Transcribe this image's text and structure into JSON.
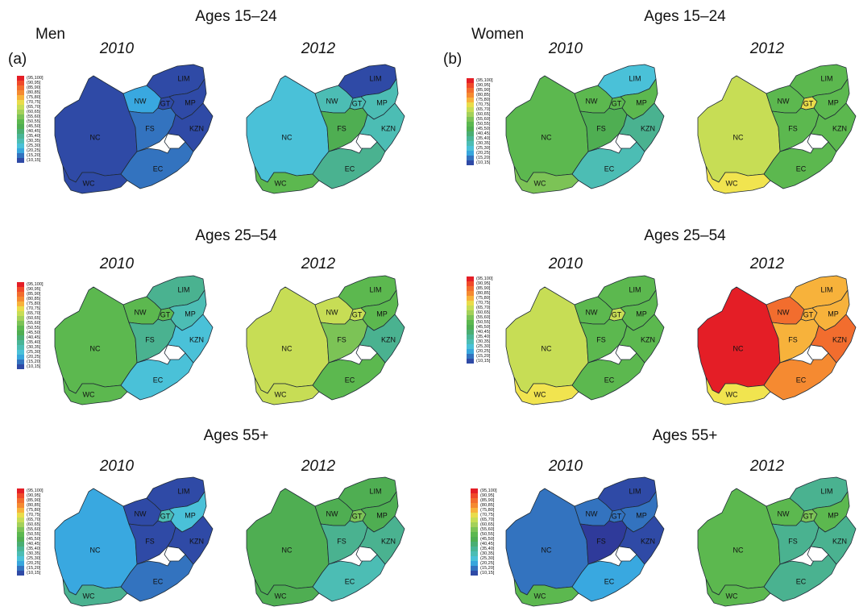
{
  "panels": [
    {
      "tag": "(a)",
      "sex": "Men"
    },
    {
      "tag": "(b)",
      "sex": "Women"
    }
  ],
  "age_groups": [
    "Ages 15–24",
    "Ages 25–54",
    "Ages 55+"
  ],
  "years": [
    "2010",
    "2012"
  ],
  "legend": {
    "bins": [
      "(95,100]",
      "(90,95]",
      "(85,90]",
      "(80,85]",
      "(75,80]",
      "(70,75]",
      "(65,70]",
      "(60,65]",
      "(55,60]",
      "(50,55]",
      "(45,50]",
      "(40,45]",
      "(35,40]",
      "(30,35]",
      "(25,30]",
      "(20,25]",
      "(15,20]",
      "(10,15]"
    ],
    "colors": [
      "#e41e26",
      "#f04a2a",
      "#f26d2e",
      "#f58a31",
      "#f7b23b",
      "#e9dc4a",
      "#c7dd55",
      "#a4d15a",
      "#7cc356",
      "#5cb84f",
      "#4fae52",
      "#4aae73",
      "#49b596",
      "#4cbdb4",
      "#4ac1d8",
      "#38a6dc",
      "#3373bf",
      "#2f4aa6"
    ]
  },
  "region_labels": [
    "LIM",
    "NW",
    "GT",
    "MP",
    "NC",
    "FS",
    "KZN",
    "WC",
    "EC"
  ],
  "maps": [
    {
      "sex": "Men",
      "age": "Ages 15–24",
      "year": "2010",
      "colors": {
        "LIM": "#2f4aa6",
        "NW": "#39a8e0",
        "GT": "#2f4aa6",
        "MP": "#2f4aa6",
        "NC": "#2f4aa6",
        "FS": "#3373bf",
        "KZN": "#2f4aa6",
        "WC": "#2f4aa6",
        "EC": "#3373bf"
      }
    },
    {
      "sex": "Men",
      "age": "Ages 15–24",
      "year": "2012",
      "colors": {
        "LIM": "#2f4aa6",
        "NW": "#4cbdb4",
        "GT": "#4cbdb4",
        "MP": "#4cbdb4",
        "NC": "#4ac1d8",
        "FS": "#4fae52",
        "KZN": "#4cbdb4",
        "WC": "#5cb84f",
        "EC": "#4ab290"
      }
    },
    {
      "sex": "Women",
      "age": "Ages 15–24",
      "year": "2010",
      "colors": {
        "LIM": "#4ac1d8",
        "NW": "#5cb84f",
        "GT": "#5cb84f",
        "MP": "#5cb84f",
        "NC": "#5cb84f",
        "FS": "#4fae52",
        "KZN": "#4ab290",
        "WC": "#7cc356",
        "EC": "#4cbdb4"
      }
    },
    {
      "sex": "Women",
      "age": "Ages 15–24",
      "year": "2012",
      "colors": {
        "LIM": "#5cb84f",
        "NW": "#5cb84f",
        "GT": "#e9dc4a",
        "MP": "#5cb84f",
        "NC": "#c7dd55",
        "FS": "#5cb84f",
        "KZN": "#5cb84f",
        "WC": "#f1e44f",
        "EC": "#5cb84f"
      }
    },
    {
      "sex": "Men",
      "age": "Ages 25–54",
      "year": "2010",
      "colors": {
        "LIM": "#4ab290",
        "NW": "#5cb84f",
        "GT": "#5cb84f",
        "MP": "#4cbdb4",
        "NC": "#5cb84f",
        "FS": "#4ab290",
        "KZN": "#4ac1d8",
        "WC": "#5cb84f",
        "EC": "#4ac1d8"
      }
    },
    {
      "sex": "Men",
      "age": "Ages 25–54",
      "year": "2012",
      "colors": {
        "LIM": "#5cb84f",
        "NW": "#c7dd55",
        "GT": "#c7dd55",
        "MP": "#5cb84f",
        "NC": "#c7dd55",
        "FS": "#7cc356",
        "KZN": "#4ab290",
        "WC": "#c7dd55",
        "EC": "#5cb84f"
      }
    },
    {
      "sex": "Women",
      "age": "Ages 25–54",
      "year": "2010",
      "colors": {
        "LIM": "#5cb84f",
        "NW": "#5cb84f",
        "GT": "#c7dd55",
        "MP": "#5cb84f",
        "NC": "#c7dd55",
        "FS": "#5cb84f",
        "KZN": "#5cb84f",
        "WC": "#f1e44f",
        "EC": "#5cb84f"
      }
    },
    {
      "sex": "Women",
      "age": "Ages 25–54",
      "year": "2012",
      "colors": {
        "LIM": "#f7b23b",
        "NW": "#f26d2e",
        "GT": "#f7b23b",
        "MP": "#f7b23b",
        "NC": "#e41e26",
        "FS": "#f7b23b",
        "KZN": "#f26d2e",
        "WC": "#f1e44f",
        "EC": "#f58a31"
      }
    },
    {
      "sex": "Men",
      "age": "Ages 55+",
      "year": "2010",
      "colors": {
        "LIM": "#2f4aa6",
        "NW": "#2f4aa6",
        "GT": "#4cbdb4",
        "MP": "#4ac1d8",
        "NC": "#39a8e0",
        "FS": "#2f4aa6",
        "KZN": "#2f4aa6",
        "WC": "#4ab290",
        "EC": "#3373bf"
      }
    },
    {
      "sex": "Men",
      "age": "Ages 55+",
      "year": "2012",
      "colors": {
        "LIM": "#4fae52",
        "NW": "#4fae52",
        "GT": "#7cc356",
        "MP": "#4fae52",
        "NC": "#4fae52",
        "FS": "#4ab290",
        "KZN": "#4ab290",
        "WC": "#4fae52",
        "EC": "#4cbdb4"
      }
    },
    {
      "sex": "Women",
      "age": "Ages 55+",
      "year": "2010",
      "colors": {
        "LIM": "#2f4aa6",
        "NW": "#3373bf",
        "GT": "#3373bf",
        "MP": "#3373bf",
        "NC": "#3373bf",
        "FS": "#2f3a9a",
        "KZN": "#2f4aa6",
        "WC": "#5cb84f",
        "EC": "#39a8e0"
      }
    },
    {
      "sex": "Women",
      "age": "Ages 55+",
      "year": "2012",
      "colors": {
        "LIM": "#4ab290",
        "NW": "#5cb84f",
        "GT": "#7cc356",
        "MP": "#5cb84f",
        "NC": "#5cb84f",
        "FS": "#4ab290",
        "KZN": "#4ab290",
        "WC": "#5cb84f",
        "EC": "#4ab290"
      }
    }
  ]
}
